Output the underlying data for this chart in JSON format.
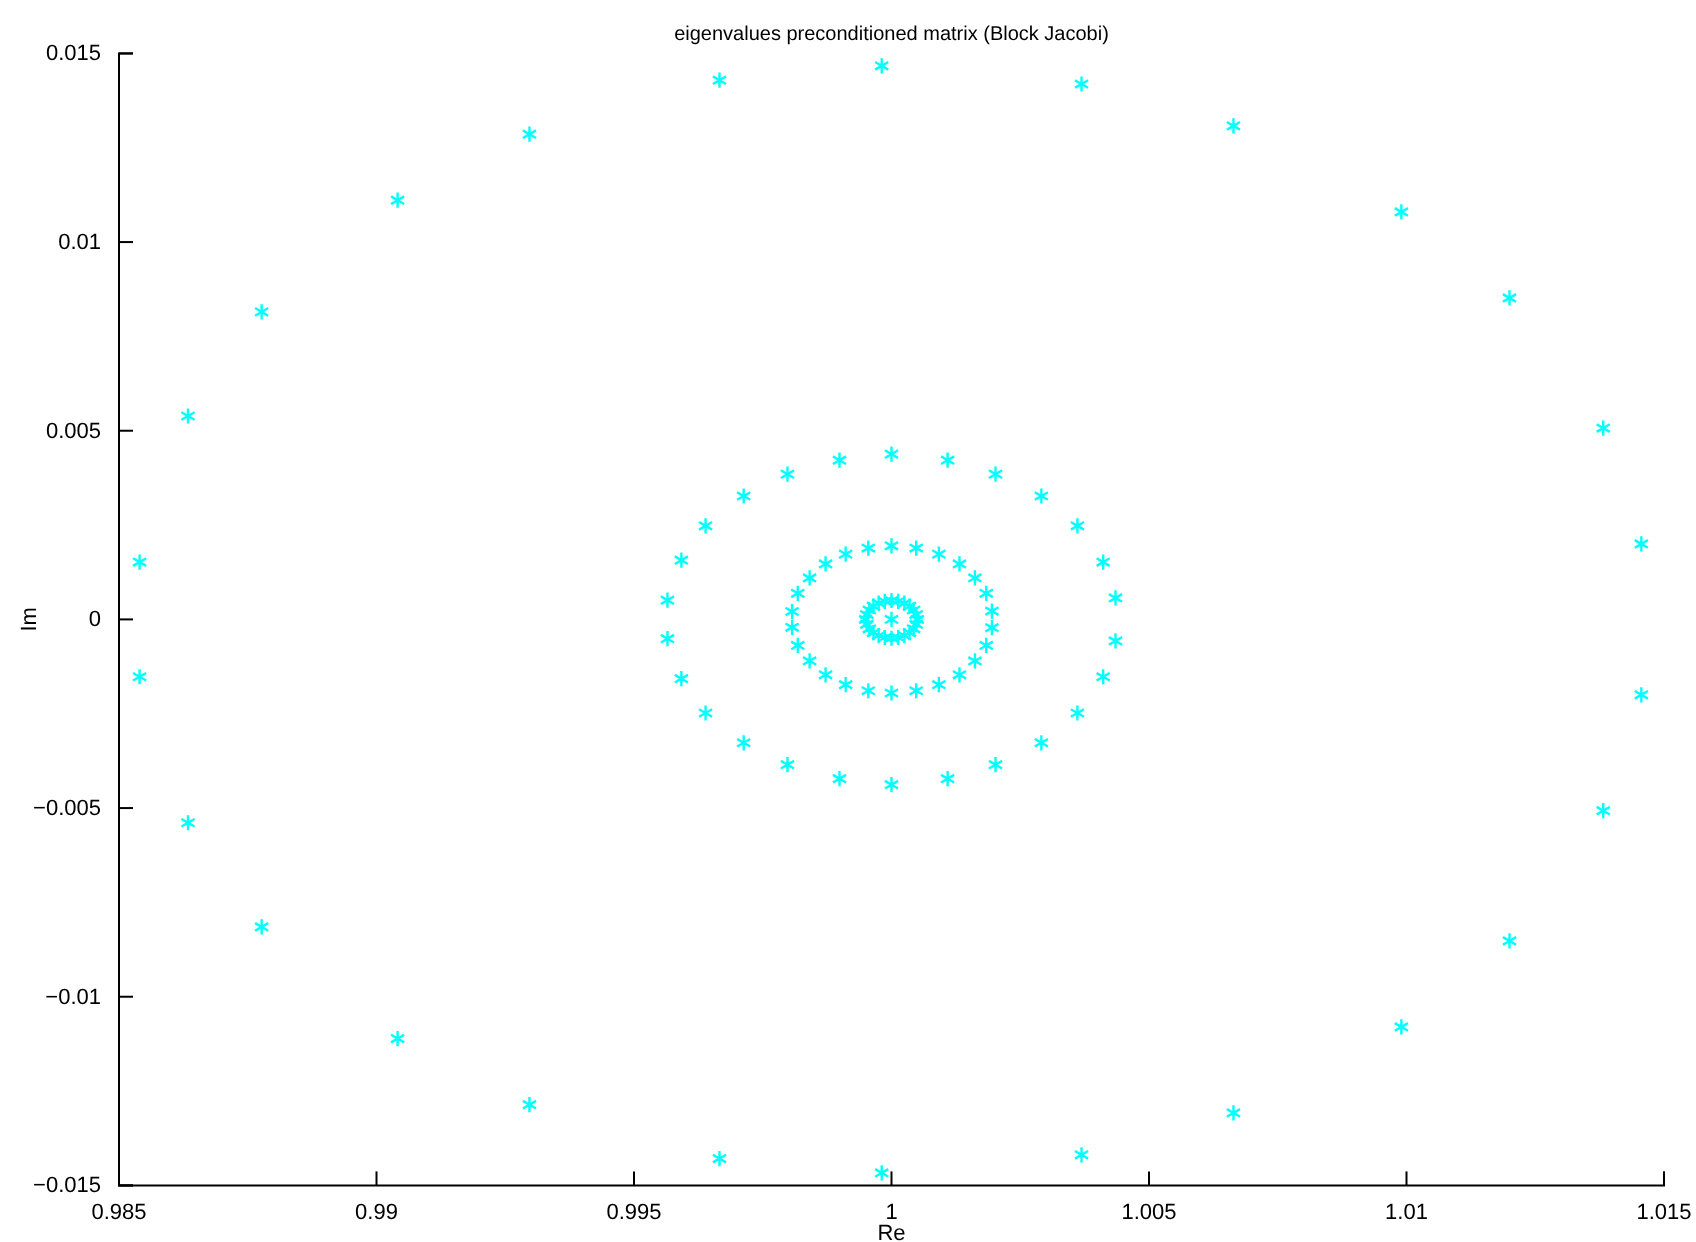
{
  "chart_data": {
    "type": "scatter",
    "title": "eigenvalues preconditioned matrix (Block Jacobi)",
    "xlabel": "Re",
    "ylabel": "Im",
    "xlim": [
      0.985,
      1.015
    ],
    "xticks": [
      0.985,
      0.99,
      0.995,
      1,
      1.005,
      1.01,
      1.015
    ],
    "ylim": [
      -0.015,
      0.015
    ],
    "yticks": [
      -0.015,
      -0.01,
      -0.005,
      0,
      0.005,
      0.01,
      0.015
    ],
    "marker": "cross",
    "grid": false,
    "series": [
      {
        "color": "#00ffff",
        "x": [
          0.9854,
          0.98634,
          0.98777,
          0.99041,
          0.99297,
          0.99666,
          0.99981,
          1.00369,
          1.00664,
          1.0099,
          1.012,
          1.01382,
          1.01456,
          0.9854,
          0.98634,
          0.98777,
          0.99041,
          0.99297,
          0.99666,
          0.99981,
          1.00369,
          1.00664,
          1.0099,
          1.012,
          1.01382,
          1.01456,
          0.99565,
          0.99592,
          0.99639,
          0.99713,
          0.99798,
          0.99899,
          1,
          1.00109,
          1.00202,
          1.00291,
          1.00361,
          1.00411,
          1.00435,
          0.99565,
          0.99592,
          0.99639,
          0.99713,
          0.99798,
          0.99899,
          1,
          1.00109,
          1.00202,
          1.00291,
          1.00361,
          1.00411,
          1.00435,
          0.99807,
          0.99818,
          0.99841,
          0.99872,
          0.99911,
          0.99955,
          1,
          1.00048,
          1.00092,
          1.00132,
          1.00162,
          1.00184,
          1.00195,
          0.99807,
          0.99818,
          0.99841,
          0.99872,
          0.99911,
          0.99955,
          1,
          1.00048,
          1.00092,
          1.00132,
          1.00162,
          1.00184,
          1.00195,
          1.0005,
          1.00048,
          1.00043,
          1.00035,
          1.00025,
          1.00013,
          1,
          0.99987,
          0.99975,
          0.99965,
          0.99957,
          0.99952,
          0.9995,
          0.99952,
          0.99957,
          0.99965,
          0.99975,
          0.99987,
          1,
          1.00013,
          1.00025,
          1.00035,
          1.00043,
          1.00048,
          1
        ],
        "values": [
          0.00152,
          0.00539,
          0.00815,
          0.01111,
          0.01286,
          0.01429,
          0.01467,
          0.01419,
          0.01308,
          0.0108,
          0.00852,
          0.00507,
          0.002,
          -0.00152,
          -0.00539,
          -0.00815,
          -0.01111,
          -0.01286,
          -0.01429,
          -0.01467,
          -0.01419,
          -0.01308,
          -0.0108,
          -0.00852,
          -0.00507,
          -0.002,
          0.00051,
          0.00157,
          0.00248,
          0.00327,
          0.00385,
          0.00422,
          0.00438,
          0.00422,
          0.00385,
          0.00327,
          0.00248,
          0.00152,
          0.00057,
          -0.00051,
          -0.00157,
          -0.00248,
          -0.00327,
          -0.00385,
          -0.00422,
          -0.00438,
          -0.00422,
          -0.00385,
          -0.00327,
          -0.00248,
          -0.00152,
          -0.00057,
          0.00021,
          0.00069,
          0.0011,
          0.00147,
          0.00173,
          0.00189,
          0.00195,
          0.00189,
          0.00173,
          0.00147,
          0.0011,
          0.00069,
          0.00022,
          -0.00021,
          -0.00069,
          -0.0011,
          -0.00147,
          -0.00173,
          -0.00189,
          -0.00195,
          -0.00189,
          -0.00173,
          -0.00147,
          -0.0011,
          -0.00069,
          -0.00022,
          0,
          0.00013,
          0.00025,
          0.00035,
          0.00043,
          0.00048,
          0.0005,
          0.00048,
          0.00043,
          0.00035,
          0.00025,
          0.00013,
          0,
          -0.00013,
          -0.00025,
          -0.00035,
          -0.00043,
          -0.00048,
          -0.0005,
          -0.00048,
          -0.00043,
          -0.00035,
          -0.00025,
          -0.00013,
          0
        ]
      }
    ]
  }
}
